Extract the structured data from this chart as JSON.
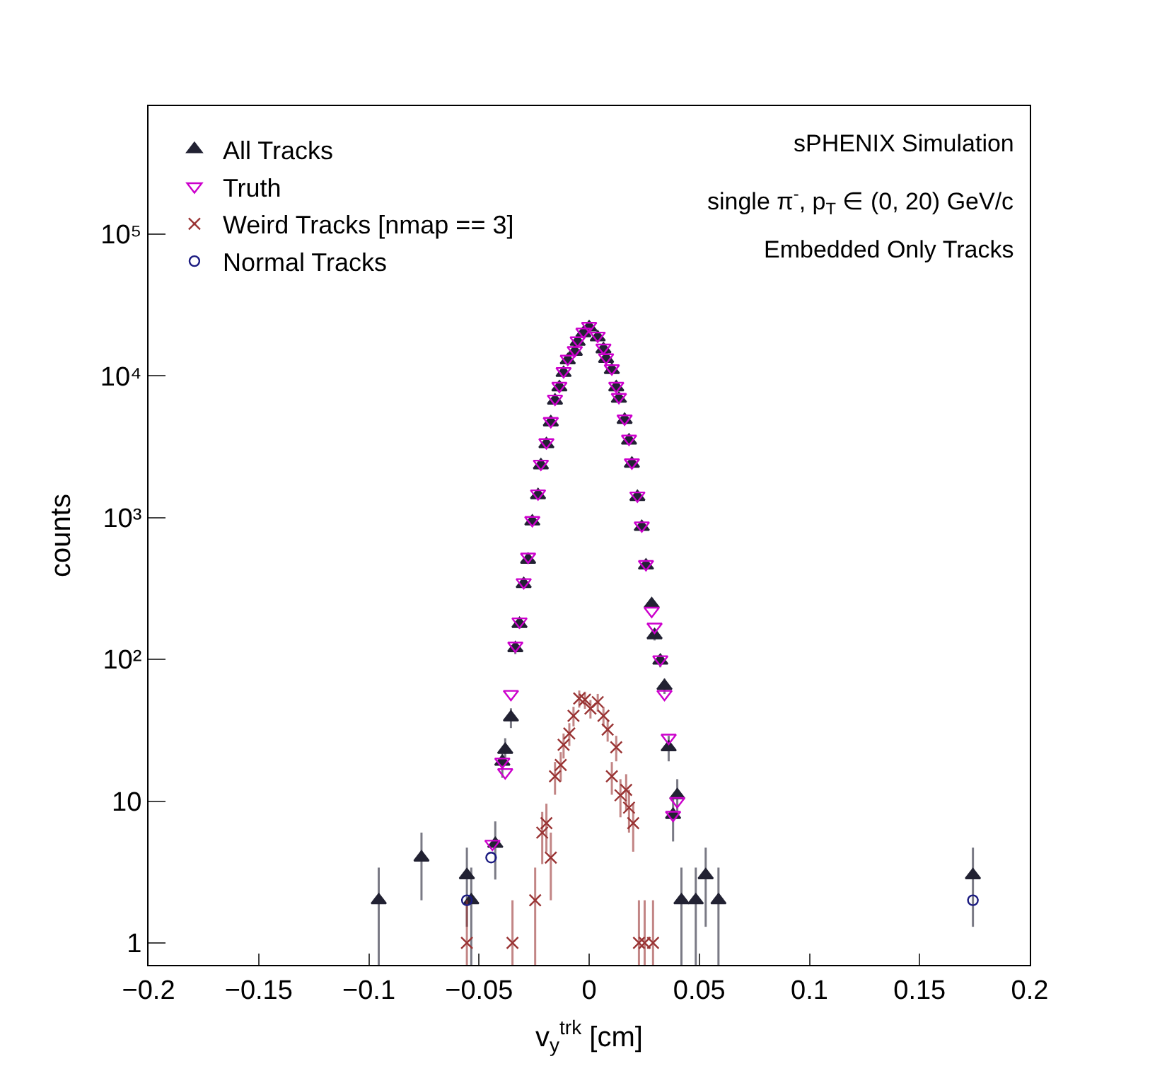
{
  "chart_data": {
    "type": "scatter",
    "xlabel": "v$_{y}$$^{trk}$ [cm]",
    "ylabel": "counts",
    "annotations": [
      "sPHENIX Simulation",
      "single π$^{-}$, p$_{T}$ ∈ (0, 20) GeV/c",
      "Embedded Only Tracks"
    ],
    "log": "y",
    "legend": "top left",
    "xlim": [
      -0.2,
      0.2
    ],
    "xticks": [
      {
        "value": -0.2,
        "label": "−0.2"
      },
      {
        "value": -0.15,
        "label": "−0.15"
      },
      {
        "value": -0.1,
        "label": "−0.1"
      },
      {
        "value": -0.05,
        "label": "−0.05"
      },
      0,
      0.05,
      0.1,
      0.15,
      0.2
    ],
    "ylim": [
      0.7,
      800000
    ],
    "yticks": [
      1,
      10,
      {
        "value": 100,
        "label": "10²"
      },
      {
        "value": 1000,
        "label": "10³"
      },
      {
        "value": 10000,
        "label": "10⁴"
      },
      {
        "value": 100000,
        "label": "10⁵"
      }
    ],
    "series": [
      {
        "name": "All Tracks",
        "color": "#222233",
        "marker": "triangle",
        "x": [
          -0.0955,
          -0.0761,
          -0.0555,
          -0.0535,
          -0.0426,
          -0.0394,
          -0.0381,
          -0.0355,
          -0.0335,
          -0.0316,
          -0.0297,
          -0.0277,
          -0.0258,
          -0.0232,
          -0.0219,
          -0.0194,
          -0.0174,
          -0.0155,
          -0.0135,
          -0.0116,
          -0.0097,
          -0.0065,
          -0.0052,
          -0.0026,
          0,
          0.0039,
          0.0065,
          0.0077,
          0.0103,
          0.0123,
          0.0135,
          0.0161,
          0.0181,
          0.0194,
          0.0219,
          0.0239,
          0.0258,
          0.0284,
          0.0297,
          0.0323,
          0.0342,
          0.0361,
          0.0381,
          0.04,
          0.0419,
          0.0484,
          0.0529,
          0.0587,
          0.1742
        ],
        "values": [
          2,
          4,
          3,
          2,
          5,
          19,
          23,
          39,
          120,
          178,
          340,
          505,
          940,
          1440,
          2340,
          3300,
          4700,
          6700,
          8300,
          10500,
          12900,
          14800,
          17400,
          20000,
          22000,
          18700,
          15400,
          13200,
          11000,
          8300,
          6900,
          4900,
          3500,
          2400,
          1400,
          860,
          460,
          245,
          148,
          98,
          65,
          24,
          8,
          11,
          2,
          2,
          3,
          2,
          3
        ],
        "errors": [
          1.4,
          2,
          1.7,
          1.4,
          2.2,
          4.4,
          4.8,
          6.2,
          11,
          13,
          null,
          null,
          null,
          null,
          null,
          null,
          null,
          null,
          null,
          null,
          null,
          null,
          null,
          null,
          null,
          null,
          null,
          null,
          null,
          null,
          null,
          null,
          null,
          null,
          null,
          null,
          null,
          null,
          12,
          10,
          8,
          4.9,
          2.8,
          3.3,
          1.4,
          1.4,
          1.7,
          1.4,
          1.7
        ]
      },
      {
        "name": "Truth",
        "color": "#cc00cc",
        "marker": "triangle-down",
        "x": [
          -0.0439,
          -0.0394,
          -0.0381,
          -0.0355,
          -0.0335,
          -0.0316,
          -0.0297,
          -0.0277,
          -0.0258,
          -0.0232,
          -0.0219,
          -0.0194,
          -0.0174,
          -0.0155,
          -0.0135,
          -0.0116,
          -0.0097,
          -0.0065,
          -0.0052,
          -0.0026,
          0,
          0.0039,
          0.0065,
          0.0077,
          0.0103,
          0.0123,
          0.0135,
          0.0161,
          0.0181,
          0.0194,
          0.0219,
          0.0239,
          0.0258,
          0.0284,
          0.0297,
          0.0323,
          0.0342,
          0.0361,
          0.0381,
          0.04
        ],
        "values": [
          5,
          19,
          16,
          57,
          125,
          185,
          350,
          530,
          960,
          1480,
          2400,
          3400,
          4800,
          6900,
          8500,
          10800,
          13200,
          15200,
          17800,
          20500,
          22500,
          19200,
          15800,
          13500,
          11300,
          8500,
          7100,
          5000,
          3600,
          2450,
          1430,
          880,
          470,
          220,
          170,
          100,
          57,
          28,
          8,
          10
        ]
      },
      {
        "name": "Weird Tracks [nmap == 3]",
        "color": "#993333",
        "marker": "cross",
        "x": [
          -0.0555,
          -0.0348,
          -0.0245,
          -0.0213,
          -0.0194,
          -0.0174,
          -0.0155,
          -0.0129,
          -0.0116,
          -0.009,
          -0.0071,
          -0.0045,
          -0.0019,
          0.0006,
          0.0039,
          0.0065,
          0.0084,
          0.0103,
          0.0123,
          0.0142,
          0.0168,
          0.0181,
          0.02,
          0.0226,
          0.0252,
          0.029
        ],
        "values": [
          1,
          1,
          2,
          6,
          7,
          4,
          15,
          18,
          25,
          30,
          40,
          53,
          52,
          45,
          50,
          40,
          32,
          15,
          24,
          11,
          12,
          9,
          7,
          1,
          1,
          1
        ],
        "errors": [
          [
            0.7,
            2
          ],
          [
            0.7,
            2
          ],
          1.4,
          2.4,
          2.6,
          2,
          3.9,
          4.2,
          5,
          5.5,
          6.3,
          7.3,
          7.2,
          6.7,
          7.1,
          6.3,
          5.7,
          3.9,
          4.9,
          3.3,
          3.5,
          3,
          2.6,
          [
            0.7,
            2
          ],
          [
            0.7,
            2
          ],
          [
            0.7,
            2
          ]
        ]
      },
      {
        "name": "Normal Tracks",
        "color": "#1a1a80",
        "marker": "circle",
        "x": [
          -0.0555,
          -0.0445,
          0.1742
        ],
        "values": [
          2,
          4,
          2
        ]
      }
    ]
  }
}
